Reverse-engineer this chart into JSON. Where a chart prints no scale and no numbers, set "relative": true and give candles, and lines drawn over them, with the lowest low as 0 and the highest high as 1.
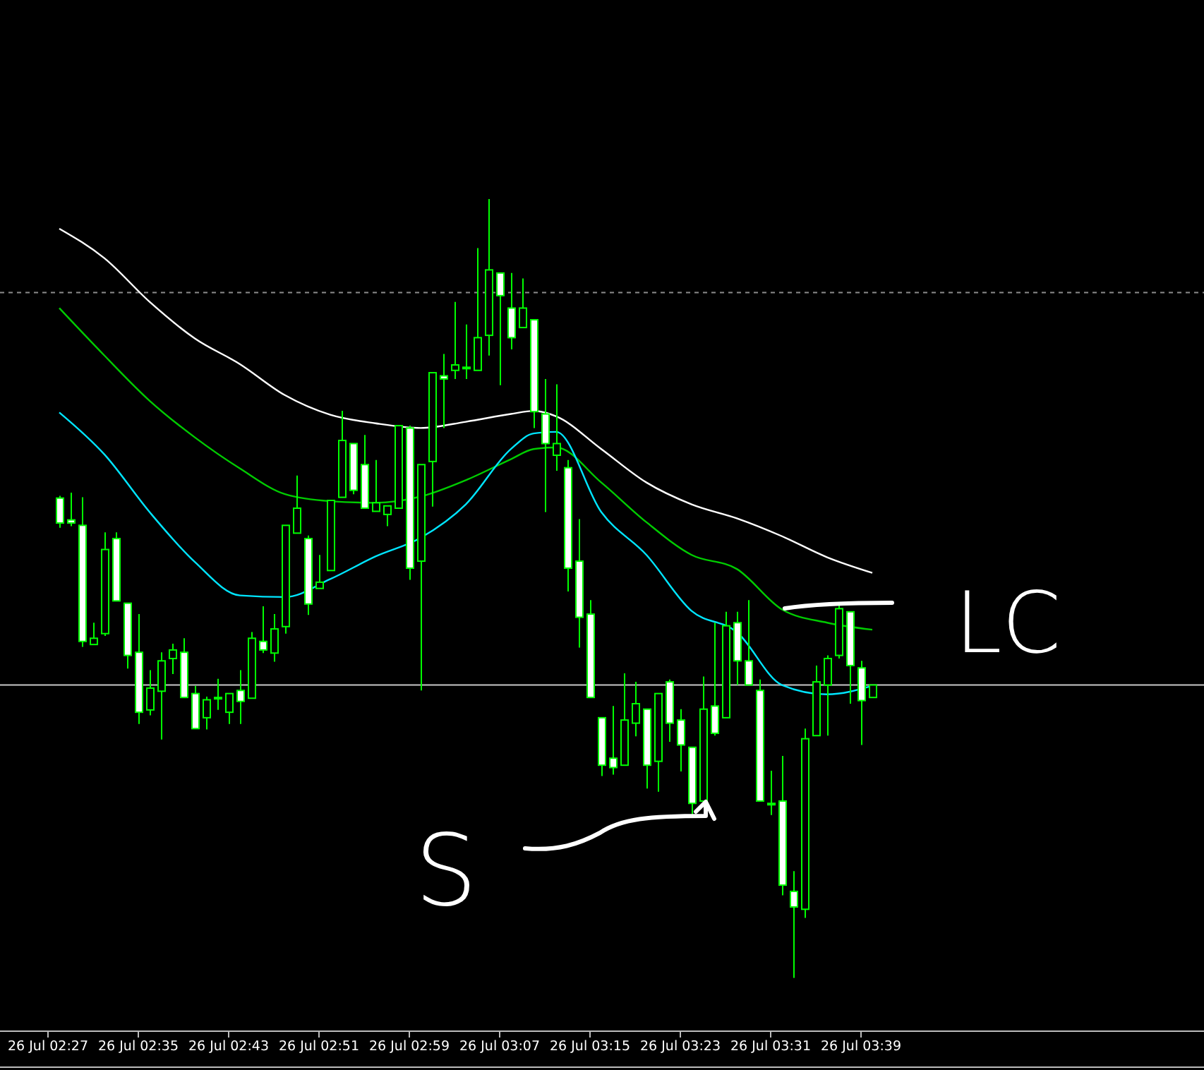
{
  "chart_data": {
    "type": "candlestick",
    "relative": true,
    "tick_labels": "x",
    "grid": false,
    "categories": [
      "26 Jul 02:27",
      null,
      null,
      null,
      null,
      null,
      null,
      null,
      "26 Jul 02:35",
      null,
      null,
      null,
      null,
      null,
      null,
      null,
      "26 Jul 02:43",
      null,
      null,
      null,
      null,
      null,
      null,
      null,
      "26 Jul 02:51",
      null,
      null,
      null,
      null,
      null,
      null,
      null,
      "26 Jul 02:59",
      null,
      null,
      null,
      null,
      null,
      null,
      null,
      "26 Jul 03:07",
      null,
      null,
      null,
      null,
      null,
      null,
      null,
      "26 Jul 03:15",
      null,
      null,
      null,
      null,
      null,
      null,
      null,
      "26 Jul 03:23",
      null,
      null,
      null,
      null,
      null,
      null,
      null,
      "26 Jul 03:31",
      null,
      null,
      null,
      null,
      null,
      null,
      null,
      "26 Jul 03:39",
      null
    ],
    "ohlc": [
      null,
      [
        0.616,
        0.619,
        0.578,
        0.584
      ],
      [
        0.588,
        0.623,
        0.58,
        0.584
      ],
      [
        0.581,
        0.617,
        0.425,
        0.432
      ],
      [
        0.428,
        0.456,
        0.428,
        0.436
      ],
      [
        0.442,
        0.572,
        0.439,
        0.55
      ],
      [
        0.564,
        0.572,
        0.484,
        0.484
      ],
      [
        0.481,
        0.481,
        0.397,
        0.414
      ],
      [
        0.418,
        0.467,
        0.326,
        0.341
      ],
      [
        0.344,
        0.395,
        0.337,
        0.372
      ],
      [
        0.368,
        0.418,
        0.306,
        0.407
      ],
      [
        0.41,
        0.429,
        0.39,
        0.421
      ],
      [
        0.418,
        0.436,
        0.36,
        0.36
      ],
      [
        0.365,
        0.375,
        0.32,
        0.32
      ],
      [
        0.334,
        0.361,
        0.319,
        0.357
      ],
      [
        0.36,
        0.384,
        0.344,
        0.36
      ],
      [
        0.341,
        0.365,
        0.326,
        0.365
      ],
      [
        0.369,
        0.395,
        0.326,
        0.355
      ],
      [
        0.359,
        0.444,
        0.359,
        0.436
      ],
      [
        0.432,
        0.477,
        0.417,
        0.421
      ],
      [
        0.417,
        0.467,
        0.406,
        0.448
      ],
      [
        0.451,
        0.581,
        0.442,
        0.581
      ],
      [
        0.571,
        0.645,
        0.571,
        0.603
      ],
      [
        0.564,
        0.568,
        0.466,
        0.48
      ],
      [
        0.5,
        0.543,
        0.5,
        0.508
      ],
      [
        0.523,
        0.614,
        0.523,
        0.613
      ],
      [
        0.617,
        0.728,
        0.617,
        0.69
      ],
      [
        0.686,
        0.686,
        0.621,
        0.626
      ],
      [
        0.659,
        0.697,
        0.603,
        0.603
      ],
      [
        0.599,
        0.665,
        0.599,
        0.61
      ],
      [
        0.595,
        0.606,
        0.58,
        0.606
      ],
      [
        0.603,
        0.709,
        0.603,
        0.709
      ],
      [
        0.706,
        0.709,
        0.511,
        0.526
      ],
      [
        0.535,
        0.659,
        0.369,
        0.659
      ],
      [
        0.663,
        0.777,
        0.605,
        0.777
      ],
      [
        0.773,
        0.801,
        0.706,
        0.769
      ],
      [
        0.78,
        0.868,
        0.769,
        0.787
      ],
      [
        0.784,
        0.839,
        0.769,
        0.784
      ],
      [
        0.78,
        0.937,
        0.78,
        0.822
      ],
      [
        0.825,
        1,
        0.799,
        0.909
      ],
      [
        0.905,
        0.905,
        0.761,
        0.876
      ],
      [
        0.86,
        0.905,
        0.807,
        0.822
      ],
      [
        0.835,
        0.898,
        0.835,
        0.86
      ],
      [
        0.845,
        0.845,
        0.706,
        0.727
      ],
      [
        0.724,
        0.769,
        0.598,
        0.686
      ],
      [
        0.671,
        0.762,
        0.651,
        0.686
      ],
      [
        0.655,
        0.665,
        0.496,
        0.526
      ],
      [
        0.535,
        0.589,
        0.424,
        0.463
      ],
      [
        0.467,
        0.485,
        0.36,
        0.36
      ],
      [
        0.334,
        0.334,
        0.259,
        0.273
      ],
      [
        0.282,
        0.349,
        0.261,
        0.27
      ],
      [
        0.273,
        0.391,
        0.273,
        0.331
      ],
      [
        0.327,
        0.38,
        0.31,
        0.352
      ],
      [
        0.345,
        0.345,
        0.243,
        0.273
      ],
      [
        0.278,
        0.365,
        0.239,
        0.365
      ],
      [
        0.38,
        0.383,
        0.303,
        0.327
      ],
      [
        0.331,
        0.345,
        0.265,
        0.299
      ],
      [
        0.296,
        0.296,
        0.21,
        0.224
      ],
      [
        0.227,
        0.387,
        0.224,
        0.345
      ],
      [
        0.349,
        0.456,
        0.311,
        0.314
      ],
      [
        0.334,
        0.47,
        0.334,
        0.452
      ],
      [
        0.456,
        0.47,
        0.376,
        0.407
      ],
      [
        0.407,
        0.485,
        0.376,
        0.376
      ],
      [
        0.369,
        0.383,
        0.227,
        0.227
      ],
      [
        0.224,
        0.266,
        0.209,
        0.224
      ],
      [
        0.227,
        0.285,
        0.106,
        0.119
      ],
      [
        0.111,
        0.137,
        0,
        0.091
      ],
      [
        0.088,
        0.32,
        0.077,
        0.307
      ],
      [
        0.311,
        0.401,
        0.311,
        0.38
      ],
      [
        0.376,
        0.414,
        0.311,
        0.41
      ],
      [
        0.414,
        0.481,
        0.41,
        0.474
      ],
      [
        0.47,
        0.47,
        0.352,
        0.401
      ],
      [
        0.398,
        0.407,
        0.299,
        0.356
      ],
      [
        0.36,
        0.376,
        0.36,
        0.376
      ]
    ],
    "series": [
      {
        "type": "line",
        "color": "#ffffff",
        "values": [
          null,
          0.962,
          null,
          null,
          null,
          0.924,
          null,
          null,
          null,
          0.868,
          null,
          null,
          null,
          0.821,
          null,
          null,
          null,
          0.788,
          null,
          null,
          null,
          0.748,
          null,
          null,
          null,
          0.723,
          null,
          null,
          null,
          0.712,
          null,
          null,
          null,
          0.706,
          null,
          null,
          null,
          0.714,
          null,
          null,
          null,
          0.724,
          null,
          0.728,
          null,
          0.721,
          null,
          null,
          null,
          0.679,
          null,
          null,
          null,
          0.636,
          null,
          null,
          null,
          0.608,
          null,
          null,
          null,
          0.59,
          null,
          null,
          null,
          0.567,
          null,
          null,
          null,
          0.54,
          null,
          null,
          null,
          0.52
        ]
      },
      {
        "type": "line",
        "color": "#00cc00",
        "values": [
          null,
          0.86,
          null,
          null,
          null,
          0.799,
          null,
          null,
          null,
          0.741,
          null,
          null,
          null,
          0.694,
          null,
          null,
          null,
          0.654,
          null,
          null,
          null,
          0.621,
          null,
          null,
          null,
          0.612,
          null,
          null,
          null,
          0.61,
          null,
          null,
          null,
          0.618,
          null,
          null,
          null,
          0.639,
          null,
          null,
          null,
          0.666,
          null,
          0.679,
          null,
          0.681,
          null,
          null,
          null,
          0.636,
          null,
          null,
          null,
          0.585,
          null,
          null,
          null,
          0.543,
          null,
          null,
          null,
          0.525,
          null,
          null,
          null,
          0.473,
          null,
          null,
          null,
          0.456,
          null,
          null,
          null,
          0.447
        ]
      },
      {
        "type": "line",
        "color": "#00e5ff",
        "values": [
          null,
          0.726,
          null,
          null,
          null,
          0.672,
          null,
          null,
          null,
          0.598,
          null,
          null,
          null,
          0.534,
          null,
          null,
          null,
          0.491,
          null,
          null,
          null,
          0.489,
          null,
          null,
          null,
          0.512,
          null,
          null,
          null,
          0.541,
          null,
          null,
          null,
          0.565,
          null,
          null,
          null,
          0.608,
          null,
          null,
          null,
          0.679,
          null,
          0.699,
          null,
          0.701,
          null,
          null,
          null,
          0.598,
          null,
          null,
          null,
          0.543,
          null,
          null,
          null,
          0.471,
          null,
          null,
          null,
          0.444,
          null,
          null,
          null,
          0.376,
          null,
          null,
          null,
          0.364,
          null,
          null,
          null,
          0.375
        ]
      }
    ],
    "ref_lines": [
      {
        "axis": "y",
        "value": 0.88,
        "color": "#8c8c8c",
        "line_style": "dashed"
      },
      {
        "axis": "y",
        "value": 0.376,
        "color": "#c8c8c8",
        "line_style": "solid"
      }
    ],
    "annotations": [
      "LC",
      "S"
    ]
  }
}
